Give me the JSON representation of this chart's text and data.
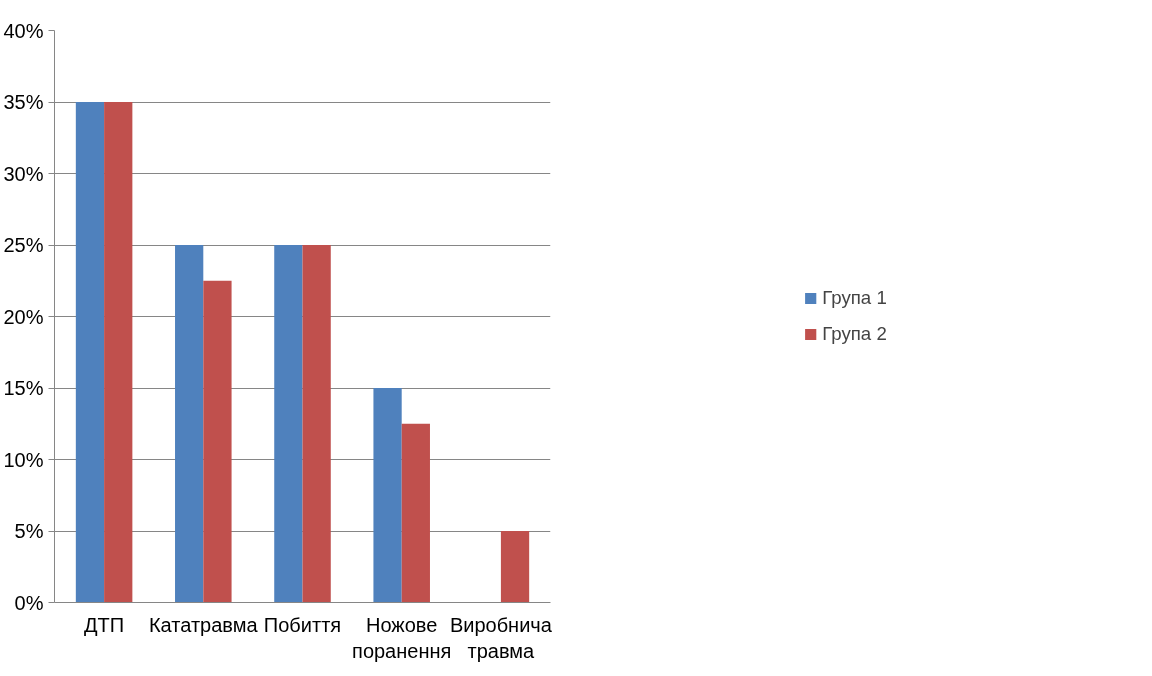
{
  "chart_data": {
    "type": "bar",
    "categories": [
      "ДТП",
      "Кататравма",
      "Побиття",
      "Ножове поранення",
      "Виробнича травма"
    ],
    "series": [
      {
        "name": "Група 1",
        "color": "#4f81bd",
        "values": [
          35,
          25,
          25,
          15,
          0
        ]
      },
      {
        "name": "Група 2",
        "color": "#c0504d",
        "values": [
          35,
          22.5,
          25,
          12.5,
          5
        ]
      }
    ],
    "ylim": [
      0,
      40
    ],
    "yticks": [
      {
        "value": 0,
        "label": "0%"
      },
      {
        "value": 5,
        "label": "5%"
      },
      {
        "value": 10,
        "label": "10%"
      },
      {
        "value": 15,
        "label": "15%"
      },
      {
        "value": 20,
        "label": "20%"
      },
      {
        "value": 25,
        "label": "25%"
      },
      {
        "value": 30,
        "label": "30%"
      },
      {
        "value": 35,
        "label": "35%"
      },
      {
        "value": 40,
        "label": "40%"
      }
    ],
    "grid": "y",
    "legend": "right"
  }
}
